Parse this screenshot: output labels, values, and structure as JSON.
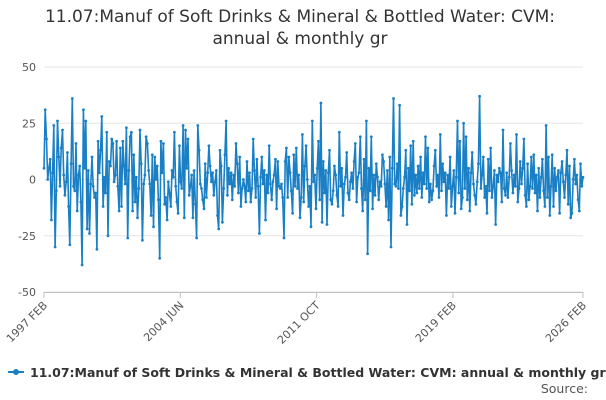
{
  "chart_data": {
    "type": "line",
    "title_lines": [
      "11.07:Manuf of Soft Drinks & Mineral & Bottled Water: CVM:",
      "annual & monthly gr"
    ],
    "xlabel": "",
    "ylabel": "",
    "ylim": [
      -50,
      50
    ],
    "yticks": [
      -50,
      -25,
      0,
      25,
      50
    ],
    "xticks": [
      {
        "label": "1997 FEB",
        "t": 1997.083
      },
      {
        "label": "2004 JUN",
        "t": 2004.417
      },
      {
        "label": "2011 OCT",
        "t": 2011.75
      },
      {
        "label": "2019 FEB",
        "t": 2019.083
      },
      {
        "label": "2026 FEB",
        "t": 2026.083
      }
    ],
    "x_start": "1997 FEB",
    "x_end": "2026 FEB",
    "grid": "horizontal",
    "legend_position": "bottom-left",
    "series": [
      {
        "name": "11.07:Manuf of Soft Drinks & Mineral & Bottled Water: CVM: annual & monthly gr",
        "color": "#1a7fc4",
        "values": [
          5,
          31,
          18,
          0,
          5,
          9,
          -18,
          3,
          24,
          -30,
          -5,
          26,
          10,
          -3,
          14,
          22,
          2,
          -7,
          -1,
          12,
          -12,
          -29,
          7,
          36,
          -3,
          -5,
          16,
          -14,
          2,
          6,
          -10,
          -38,
          31,
          5,
          26,
          -22,
          4,
          -24,
          -2,
          10,
          -3,
          -8,
          -6,
          -31,
          17,
          3,
          13,
          28,
          -12,
          1,
          -6,
          21,
          -25,
          8,
          6,
          18,
          16,
          -1,
          2,
          17,
          -3,
          -14,
          14,
          -12,
          17,
          6,
          -2,
          23,
          -26,
          4,
          19,
          21,
          -14,
          11,
          -10,
          1,
          -17,
          -4,
          22,
          7,
          -27,
          -2,
          2,
          19,
          16,
          4,
          -2,
          -16,
          11,
          -21,
          10,
          0,
          6,
          -9,
          -35,
          17,
          3,
          16,
          -11,
          -8,
          -18,
          -1,
          -6,
          -12,
          4,
          1,
          21,
          -3,
          -10,
          -15,
          15,
          -1,
          -4,
          24,
          -17,
          22,
          5,
          18,
          -7,
          -3,
          2,
          -17,
          4,
          -11,
          -26,
          24,
          13,
          -2,
          -4,
          -9,
          -13,
          7,
          -8,
          3,
          15,
          6,
          -1,
          3,
          -7,
          -1,
          4,
          -16,
          -22,
          13,
          6,
          -19,
          -4,
          11,
          26,
          -7,
          5,
          -2,
          3,
          -9,
          2,
          -3,
          16,
          7,
          -6,
          10,
          -12,
          -4,
          0,
          -3,
          -10,
          8,
          -5,
          3,
          -10,
          -4,
          18,
          4,
          -8,
          9,
          -3,
          -24,
          1,
          10,
          -2,
          4,
          -18,
          2,
          -6,
          15,
          -2,
          -9,
          -1,
          2,
          9,
          -13,
          8,
          -3,
          -4,
          -2,
          -8,
          -26,
          8,
          14,
          -8,
          10,
          3,
          -5,
          -15,
          11,
          -3,
          14,
          -4,
          2,
          -17,
          -8,
          20,
          -10,
          6,
          15,
          0,
          -12,
          -3,
          -21,
          26,
          -1,
          2,
          -13,
          5,
          17,
          -9,
          34,
          -19,
          8,
          -6,
          4,
          -20,
          3,
          13,
          -9,
          -11,
          -5,
          6,
          2,
          -7,
          -12,
          21,
          -3,
          5,
          -16,
          -2,
          1,
          12,
          -6,
          -9,
          -1,
          3,
          -4,
          8,
          16,
          -10,
          1,
          3,
          19,
          -4,
          -14,
          9,
          -9,
          26,
          -33,
          5,
          -5,
          19,
          -13,
          2,
          -7,
          7,
          1,
          -9,
          -1,
          -3,
          11,
          8,
          -2,
          -12,
          4,
          -18,
          10,
          -30,
          5,
          36,
          -2,
          -3,
          7,
          -4,
          33,
          -16,
          -12,
          -4,
          1,
          13,
          -20,
          5,
          -5,
          15,
          -11,
          17,
          -7,
          2,
          -6,
          6,
          -4,
          10,
          -8,
          3,
          -2,
          19,
          -4,
          14,
          -10,
          -2,
          -9,
          -5,
          6,
          13,
          -3,
          2,
          -8,
          20,
          -5,
          7,
          -1,
          3,
          -16,
          2,
          -4,
          10,
          -12,
          -3,
          4,
          -15,
          1,
          26,
          -6,
          17,
          -13,
          -8,
          25,
          -4,
          19,
          -9,
          5,
          -14,
          3,
          12,
          -2,
          -7,
          -11,
          -1,
          7,
          37,
          -4,
          2,
          10,
          -8,
          -3,
          -15,
          9,
          -5,
          14,
          -8,
          -3,
          4,
          -20,
          2,
          -1,
          5,
          3,
          -10,
          22,
          -4,
          -7,
          3,
          -8,
          1,
          16,
          4,
          -6,
          2,
          -3,
          20,
          -10,
          -4,
          8,
          -2,
          5,
          18,
          -7,
          -12,
          7,
          -9,
          -3,
          10,
          -4,
          11,
          -6,
          2,
          -14,
          5,
          -8,
          1,
          9,
          -5,
          -12,
          24,
          -8,
          10,
          -16,
          -3,
          11,
          -12,
          5,
          -5,
          1,
          4,
          -15,
          3,
          8,
          -1,
          -8,
          2,
          13,
          -11,
          6,
          -17,
          -15,
          0,
          9,
          -2,
          2,
          -9,
          -14,
          7,
          -3,
          1
        ]
      }
    ],
    "source_label": "Source:"
  }
}
